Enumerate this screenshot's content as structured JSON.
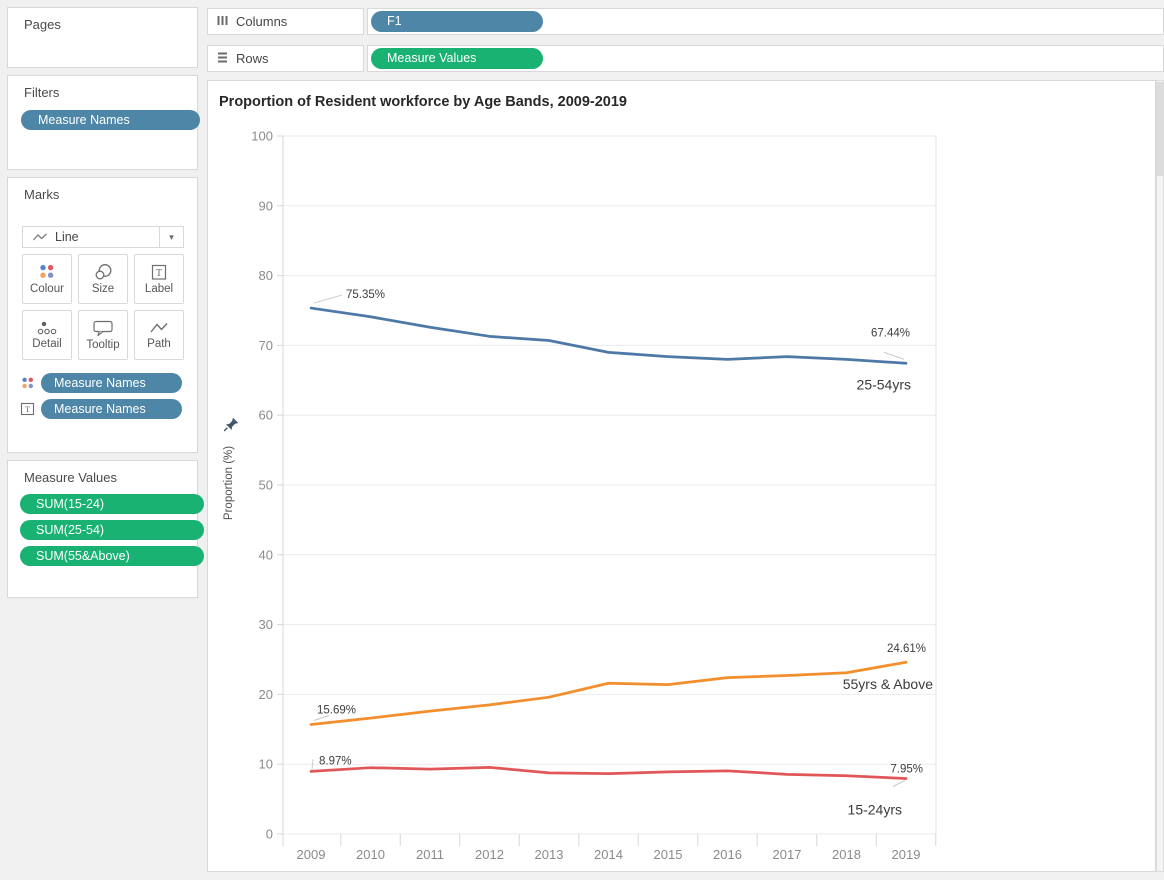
{
  "icons": {
    "caret_down": "▾"
  },
  "colors": {
    "dimension_pill": "#4d86a7",
    "measure_pill": "#19b273",
    "series_blue": "#4e79a7",
    "series_orange": "#f28e2b",
    "series_red": "#e15759"
  },
  "shelves": {
    "columns": {
      "label": "Columns",
      "pill": "F1"
    },
    "rows": {
      "label": "Rows",
      "pill": "Measure Values"
    }
  },
  "sidebar": {
    "pages": {
      "title": "Pages"
    },
    "filters": {
      "title": "Filters",
      "pills": [
        "Measure Names"
      ]
    },
    "marks": {
      "title": "Marks",
      "mark_type": "Line",
      "buttons": [
        "Colour",
        "Size",
        "Label",
        "Detail",
        "Tooltip",
        "Path"
      ],
      "pills": [
        {
          "icon": "colour-icon",
          "label": "Measure Names"
        },
        {
          "icon": "label-icon",
          "label": "Measure Names"
        }
      ]
    },
    "measure_values": {
      "title": "Measure Values",
      "pills": [
        "SUM(15-24)",
        "SUM(25-54)",
        "SUM(55&Above)"
      ]
    }
  },
  "chart_data": {
    "type": "line",
    "title": "Proportion of Resident workforce by Age Bands, 2009-2019",
    "xlabel": "",
    "ylabel": "Proportion (%)",
    "x": [
      2009,
      2010,
      2011,
      2012,
      2013,
      2014,
      2015,
      2016,
      2017,
      2018,
      2019
    ],
    "ylim": [
      0,
      100
    ],
    "yticks": [
      0,
      10,
      20,
      30,
      40,
      50,
      60,
      70,
      80,
      90,
      100
    ],
    "grid": true,
    "legend": "labels-at-line-ends",
    "series": [
      {
        "name": "25-54yrs",
        "color": "#4e79a7",
        "values": [
          75.35,
          74.1,
          72.6,
          71.3,
          70.7,
          69.0,
          68.4,
          68.0,
          68.4,
          68.0,
          67.44
        ],
        "first_label": "75.35%",
        "last_label": "67.44%"
      },
      {
        "name": "55yrs & Above",
        "color": "#f28e2b",
        "values": [
          15.69,
          16.6,
          17.6,
          18.5,
          19.6,
          21.6,
          21.4,
          22.4,
          22.7,
          23.1,
          24.61
        ],
        "first_label": "15.69%",
        "last_label": "24.61%"
      },
      {
        "name": "15-24yrs",
        "color": "#e15759",
        "values": [
          8.97,
          9.5,
          9.3,
          9.55,
          8.75,
          8.65,
          8.9,
          9.05,
          8.55,
          8.35,
          7.95
        ],
        "first_label": "8.97%",
        "last_label": "7.95%"
      }
    ]
  }
}
